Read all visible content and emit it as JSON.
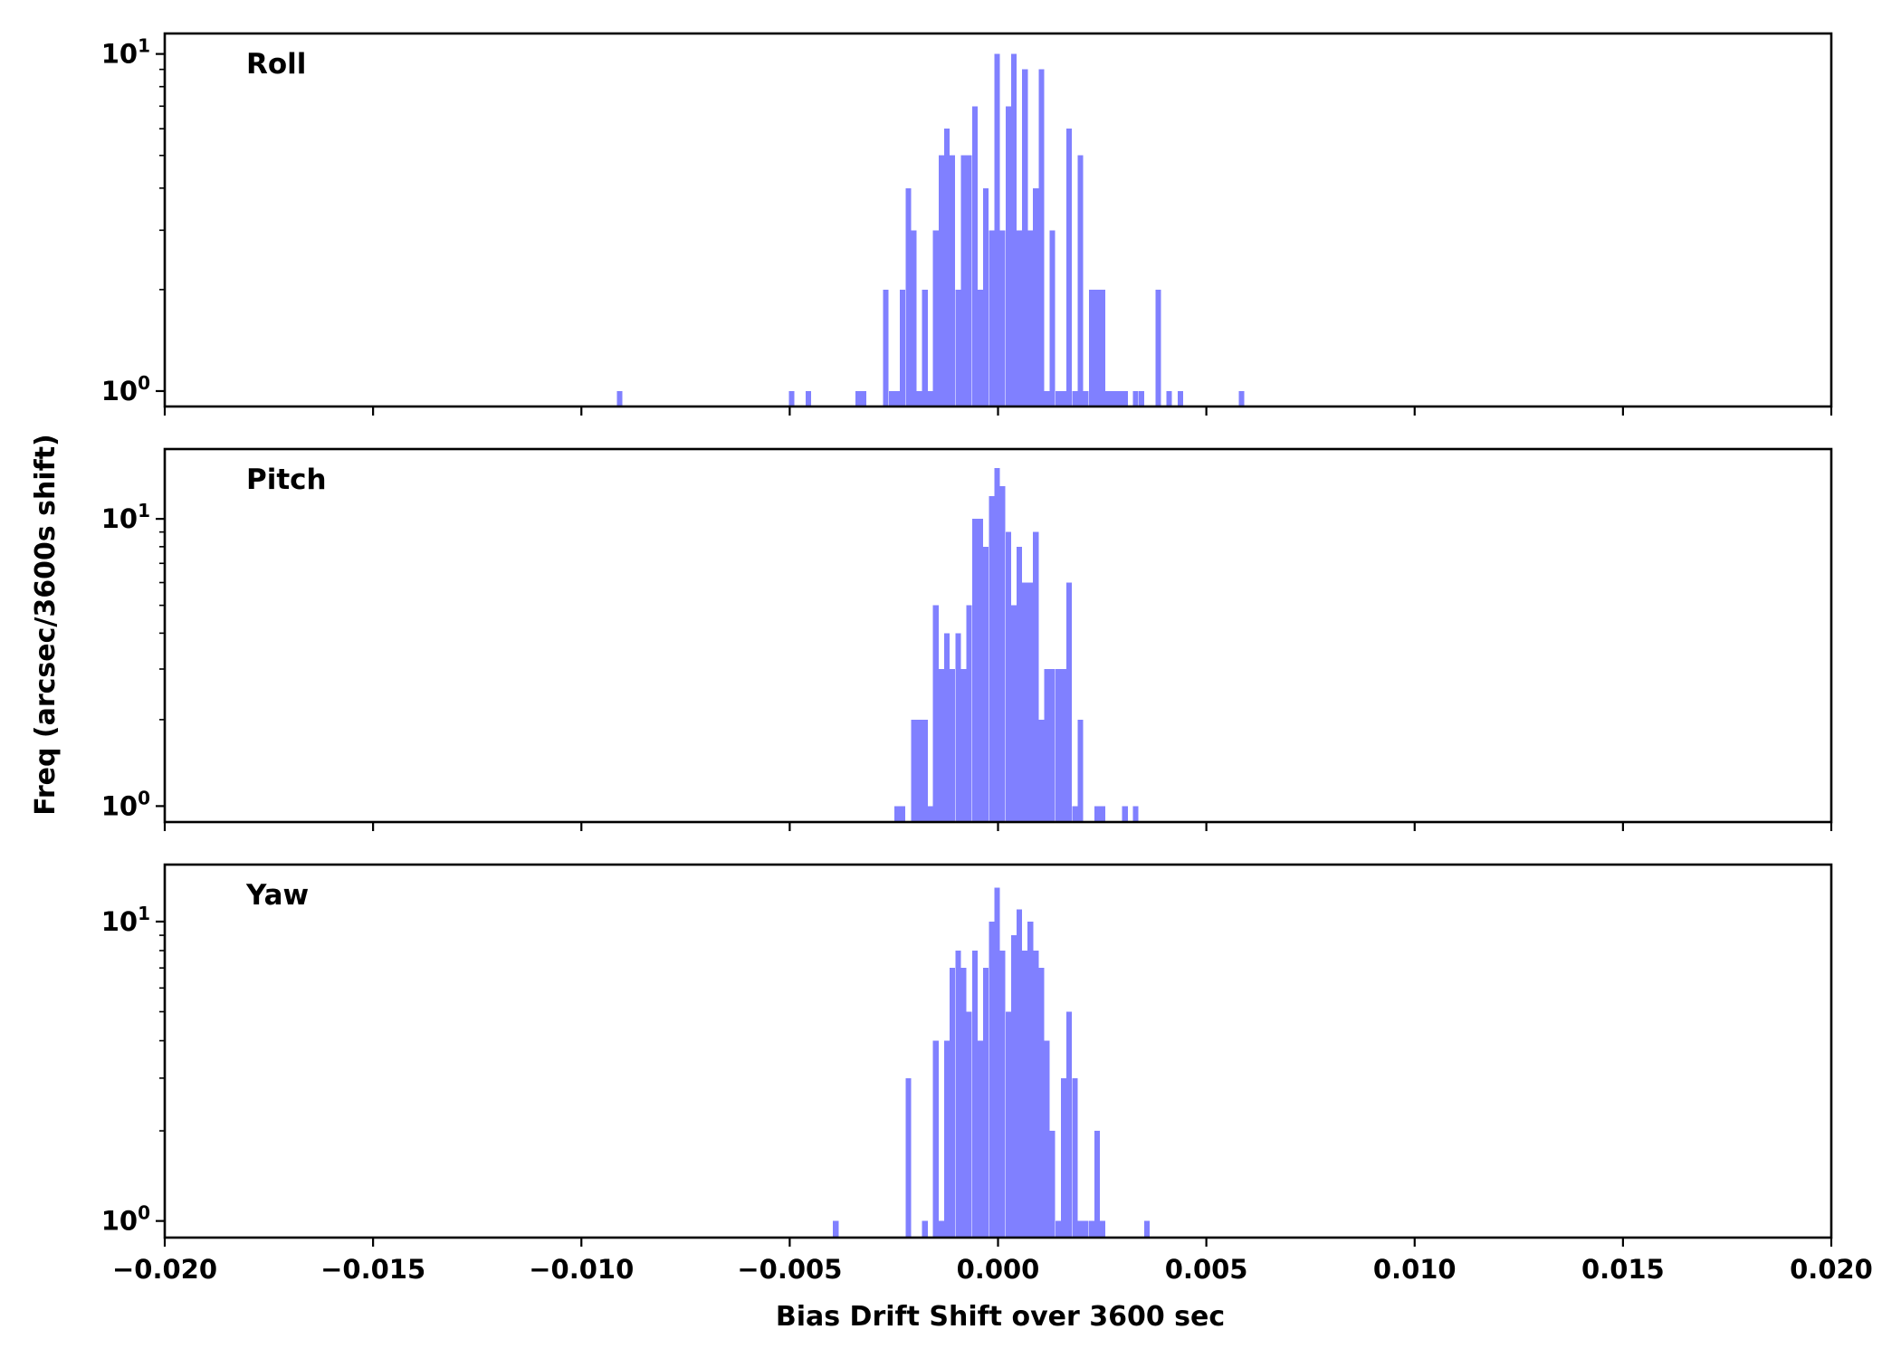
{
  "chart_data": {
    "type": "bar",
    "xlabel": "Bias Drift Shift over 3600 sec",
    "ylabel": "Freq (arcsec/3600s shift)",
    "xlim": [
      -0.02,
      0.02
    ],
    "x_ticks": [
      -0.02,
      -0.015,
      -0.01,
      -0.005,
      0.0,
      0.005,
      0.01,
      0.015,
      0.02
    ],
    "x_tick_labels": [
      "−0.020",
      "−0.015",
      "−0.010",
      "−0.005",
      "0.000",
      "0.005",
      "0.010",
      "0.015",
      "0.020"
    ],
    "yscale": "log",
    "y_tick_labels": [
      "10^0",
      "10^1"
    ],
    "bin_width": 0.000133,
    "bar_color": "#8080ff",
    "grid": false,
    "panels": [
      {
        "label": "Roll",
        "ylim": [
          0.9,
          11.5
        ],
        "bins": [
          [
            -0.00915,
            1
          ],
          [
            -0.00502,
            1
          ],
          [
            -0.00462,
            1
          ],
          [
            -0.00342,
            1
          ],
          [
            -0.00329,
            1
          ],
          [
            -0.00276,
            2
          ],
          [
            -0.00262,
            1
          ],
          [
            -0.00249,
            1
          ],
          [
            -0.00236,
            2
          ],
          [
            -0.00222,
            4
          ],
          [
            -0.00209,
            3
          ],
          [
            -0.00196,
            1
          ],
          [
            -0.00182,
            2
          ],
          [
            -0.00169,
            1
          ],
          [
            -0.00156,
            3
          ],
          [
            -0.00142,
            5
          ],
          [
            -0.00129,
            6
          ],
          [
            -0.00116,
            5
          ],
          [
            -0.00102,
            2
          ],
          [
            -0.00089,
            5
          ],
          [
            -0.00076,
            5
          ],
          [
            -0.00062,
            7
          ],
          [
            -0.00049,
            2
          ],
          [
            -0.00036,
            4
          ],
          [
            -0.00022,
            3
          ],
          [
            -9e-05,
            10
          ],
          [
            4e-05,
            3
          ],
          [
            0.00018,
            7
          ],
          [
            0.00031,
            10
          ],
          [
            0.00044,
            3
          ],
          [
            0.00058,
            9
          ],
          [
            0.00071,
            3
          ],
          [
            0.00084,
            4
          ],
          [
            0.00098,
            9
          ],
          [
            0.00111,
            1
          ],
          [
            0.00124,
            3
          ],
          [
            0.00138,
            1
          ],
          [
            0.00151,
            1
          ],
          [
            0.00164,
            6
          ],
          [
            0.00178,
            1
          ],
          [
            0.00191,
            5
          ],
          [
            0.00204,
            1
          ],
          [
            0.00218,
            2
          ],
          [
            0.00231,
            2
          ],
          [
            0.00244,
            2
          ],
          [
            0.00258,
            1
          ],
          [
            0.00271,
            1
          ],
          [
            0.00284,
            1
          ],
          [
            0.00298,
            1
          ],
          [
            0.00324,
            1
          ],
          [
            0.00338,
            1
          ],
          [
            0.00378,
            2
          ],
          [
            0.00404,
            1
          ],
          [
            0.00431,
            1
          ],
          [
            0.00578,
            1
          ]
        ]
      },
      {
        "label": "Pitch",
        "ylim": [
          0.88,
          17.5
        ],
        "bins": [
          [
            -0.00249,
            1
          ],
          [
            -0.00236,
            1
          ],
          [
            -0.00209,
            2
          ],
          [
            -0.00196,
            2
          ],
          [
            -0.00182,
            2
          ],
          [
            -0.00169,
            1
          ],
          [
            -0.00156,
            5
          ],
          [
            -0.00142,
            3
          ],
          [
            -0.00129,
            4
          ],
          [
            -0.00116,
            3
          ],
          [
            -0.00102,
            4
          ],
          [
            -0.00089,
            3
          ],
          [
            -0.00076,
            5
          ],
          [
            -0.00062,
            10
          ],
          [
            -0.00049,
            10
          ],
          [
            -0.00036,
            8
          ],
          [
            -0.00022,
            12
          ],
          [
            -9e-05,
            15
          ],
          [
            4e-05,
            13
          ],
          [
            0.00018,
            9
          ],
          [
            0.00031,
            5
          ],
          [
            0.00044,
            8
          ],
          [
            0.00058,
            6
          ],
          [
            0.00071,
            6
          ],
          [
            0.00084,
            9
          ],
          [
            0.00098,
            2
          ],
          [
            0.00111,
            3
          ],
          [
            0.00124,
            3
          ],
          [
            0.00138,
            3
          ],
          [
            0.00151,
            3
          ],
          [
            0.00164,
            6
          ],
          [
            0.00178,
            1
          ],
          [
            0.00191,
            2
          ],
          [
            0.00231,
            1
          ],
          [
            0.00244,
            1
          ],
          [
            0.00298,
            1
          ],
          [
            0.00324,
            1
          ]
        ]
      },
      {
        "label": "Yaw",
        "ylim": [
          0.88,
          15.5
        ],
        "bins": [
          [
            -0.00396,
            1
          ],
          [
            -0.00222,
            3
          ],
          [
            -0.00182,
            1
          ],
          [
            -0.00156,
            4
          ],
          [
            -0.00142,
            1
          ],
          [
            -0.00129,
            4
          ],
          [
            -0.00116,
            7
          ],
          [
            -0.00102,
            8
          ],
          [
            -0.00089,
            7
          ],
          [
            -0.00076,
            5
          ],
          [
            -0.00062,
            8
          ],
          [
            -0.00049,
            4
          ],
          [
            -0.00036,
            7
          ],
          [
            -0.00022,
            10
          ],
          [
            -9e-05,
            13
          ],
          [
            4e-05,
            8
          ],
          [
            0.00018,
            5
          ],
          [
            0.00031,
            9
          ],
          [
            0.00044,
            11
          ],
          [
            0.00058,
            8
          ],
          [
            0.00071,
            10
          ],
          [
            0.00084,
            8
          ],
          [
            0.00098,
            7
          ],
          [
            0.00111,
            4
          ],
          [
            0.00124,
            2
          ],
          [
            0.00138,
            1
          ],
          [
            0.00151,
            3
          ],
          [
            0.00164,
            5
          ],
          [
            0.00178,
            3
          ],
          [
            0.00191,
            1
          ],
          [
            0.00204,
            1
          ],
          [
            0.00218,
            1
          ],
          [
            0.00231,
            2
          ],
          [
            0.00244,
            1
          ],
          [
            0.00351,
            1
          ]
        ]
      }
    ]
  }
}
